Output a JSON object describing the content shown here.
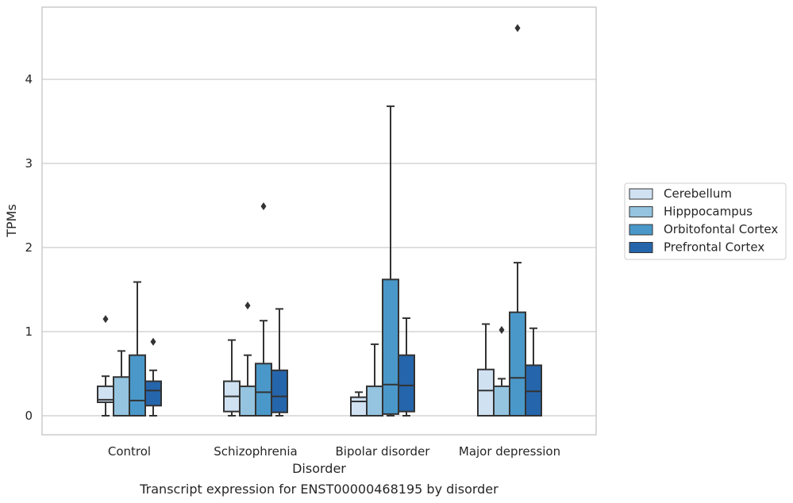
{
  "chart_data": {
    "type": "box",
    "caption": "Transcript expression for ENST00000468195 by disorder",
    "xlabel": "Disorder",
    "ylabel": "TPMs",
    "ylim": [
      -0.22,
      4.87
    ],
    "yticks": [
      0,
      1,
      2,
      3,
      4
    ],
    "grid": "horizontal",
    "legend_position": "right",
    "categories": [
      "Control",
      "Schizophrenia",
      "Bipolar disorder",
      "Major depression"
    ],
    "series": [
      {
        "name": "Cerebellum",
        "color": "#d0e1f2",
        "boxes": [
          {
            "whislo": 0.0,
            "q1": 0.16,
            "med": 0.19,
            "q3": 0.35,
            "whishi": 0.47,
            "fliers": [
              1.15
            ]
          },
          {
            "whislo": 0.0,
            "q1": 0.05,
            "med": 0.23,
            "q3": 0.41,
            "whishi": 0.9,
            "fliers": []
          },
          {
            "whislo": 0.0,
            "q1": 0.0,
            "med": 0.17,
            "q3": 0.22,
            "whishi": 0.28,
            "fliers": []
          },
          {
            "whislo": 0.0,
            "q1": 0.0,
            "med": 0.3,
            "q3": 0.55,
            "whishi": 1.09,
            "fliers": []
          }
        ]
      },
      {
        "name": "Hipppocampus",
        "color": "#94c4df",
        "boxes": [
          {
            "whislo": 0.0,
            "q1": 0.0,
            "med": 0.0,
            "q3": 0.46,
            "whishi": 0.77,
            "fliers": []
          },
          {
            "whislo": 0.0,
            "q1": 0.0,
            "med": 0.0,
            "q3": 0.35,
            "whishi": 0.72,
            "fliers": [
              1.31
            ]
          },
          {
            "whislo": 0.0,
            "q1": 0.0,
            "med": 0.0,
            "q3": 0.35,
            "whishi": 0.85,
            "fliers": []
          },
          {
            "whislo": 0.0,
            "q1": 0.0,
            "med": 0.0,
            "q3": 0.35,
            "whishi": 0.44,
            "fliers": [
              1.02
            ]
          }
        ]
      },
      {
        "name": "Orbitofontal Cortex",
        "color": "#4a98c9",
        "boxes": [
          {
            "whislo": 0.0,
            "q1": 0.0,
            "med": 0.18,
            "q3": 0.72,
            "whishi": 1.59,
            "fliers": []
          },
          {
            "whislo": 0.0,
            "q1": 0.0,
            "med": 0.28,
            "q3": 0.62,
            "whishi": 1.13,
            "fliers": [
              2.49
            ]
          },
          {
            "whislo": 0.0,
            "q1": 0.02,
            "med": 0.37,
            "q3": 1.62,
            "whishi": 3.68,
            "fliers": []
          },
          {
            "whislo": 0.0,
            "q1": 0.0,
            "med": 0.45,
            "q3": 1.23,
            "whishi": 1.82,
            "fliers": [
              4.61
            ]
          }
        ]
      },
      {
        "name": "Prefrontal Cortex",
        "color": "#2565ab",
        "boxes": [
          {
            "whislo": 0.0,
            "q1": 0.12,
            "med": 0.3,
            "q3": 0.41,
            "whishi": 0.54,
            "fliers": [
              0.88
            ]
          },
          {
            "whislo": 0.0,
            "q1": 0.04,
            "med": 0.23,
            "q3": 0.54,
            "whishi": 1.27,
            "fliers": []
          },
          {
            "whislo": 0.0,
            "q1": 0.05,
            "med": 0.36,
            "q3": 0.72,
            "whishi": 1.16,
            "fliers": []
          },
          {
            "whislo": 0.0,
            "q1": 0.0,
            "med": 0.29,
            "q3": 0.6,
            "whishi": 1.04,
            "fliers": []
          }
        ]
      }
    ]
  }
}
